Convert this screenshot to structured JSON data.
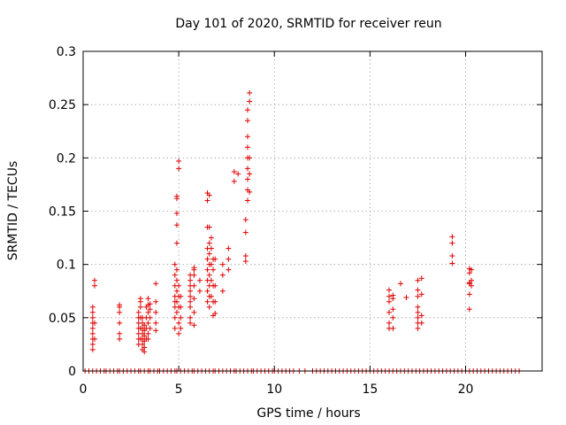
{
  "chart_data": {
    "type": "scatter",
    "title": "Day 101 of 2020, SRMTID for receiver reun",
    "xlabel": "GPS time / hours",
    "ylabel": "SRMTID / TECUs",
    "xlim": [
      0,
      24
    ],
    "ylim": [
      0,
      0.3
    ],
    "x_ticks": [
      0,
      5,
      10,
      15,
      20
    ],
    "y_ticks": [
      0,
      0.05,
      0.1,
      0.15,
      0.2,
      0.25,
      0.3
    ],
    "x_tick_labels": [
      "0",
      "5",
      "10",
      "15",
      "20"
    ],
    "y_tick_labels": [
      "0",
      "0.05",
      "0.1",
      "0.15",
      "0.2",
      "0.25",
      "0.3"
    ],
    "grid": true,
    "marker": "+",
    "marker_color": "#e00000",
    "series": [
      {
        "name": "SRMTID",
        "clusters": [
          {
            "x": 0.5,
            "values": [
              0.02,
              0.025,
              0.03,
              0.035,
              0.04,
              0.045,
              0.05,
              0.055,
              0.06
            ]
          },
          {
            "x": 0.6,
            "values": [
              0.03,
              0.045,
              0.08,
              0.085
            ]
          },
          {
            "x": 1.9,
            "values": [
              0.03,
              0.035,
              0.045,
              0.055,
              0.06,
              0.062
            ]
          },
          {
            "x": 2.9,
            "values": [
              0.025,
              0.03,
              0.035,
              0.04,
              0.045,
              0.05,
              0.055
            ]
          },
          {
            "x": 3.0,
            "values": [
              0.03,
              0.04,
              0.05,
              0.06,
              0.065,
              0.068
            ]
          },
          {
            "x": 3.1,
            "values": [
              0.02,
              0.025,
              0.03,
              0.035,
              0.04,
              0.045,
              0.05
            ]
          },
          {
            "x": 3.2,
            "values": [
              0.018,
              0.022,
              0.028,
              0.033,
              0.038,
              0.043
            ]
          },
          {
            "x": 3.3,
            "values": [
              0.03,
              0.04,
              0.05,
              0.06
            ]
          },
          {
            "x": 3.4,
            "values": [
              0.03,
              0.035,
              0.045,
              0.055,
              0.062,
              0.068
            ]
          },
          {
            "x": 3.5,
            "values": [
              0.04,
              0.05,
              0.058,
              0.063
            ]
          },
          {
            "x": 3.8,
            "values": [
              0.038,
              0.045,
              0.055,
              0.065,
              0.082
            ]
          },
          {
            "x": 4.8,
            "values": [
              0.04,
              0.05,
              0.06,
              0.065,
              0.07,
              0.08,
              0.09,
              0.1
            ]
          },
          {
            "x": 4.9,
            "values": [
              0.055,
              0.065,
              0.075,
              0.085,
              0.095,
              0.12,
              0.137,
              0.148,
              0.162,
              0.164
            ]
          },
          {
            "x": 5.0,
            "values": [
              0.035,
              0.045,
              0.06,
              0.07,
              0.08,
              0.19,
              0.197
            ]
          },
          {
            "x": 5.1,
            "values": [
              0.04,
              0.05,
              0.06,
              0.07
            ]
          },
          {
            "x": 5.6,
            "values": [
              0.045,
              0.05,
              0.06,
              0.065,
              0.07,
              0.075,
              0.08,
              0.085,
              0.09
            ]
          },
          {
            "x": 5.8,
            "values": [
              0.043,
              0.055,
              0.068,
              0.08,
              0.09,
              0.095,
              0.097
            ]
          },
          {
            "x": 6.1,
            "values": [
              0.075,
              0.085
            ]
          },
          {
            "x": 6.5,
            "values": [
              0.065,
              0.075,
              0.085,
              0.095,
              0.105,
              0.115,
              0.135,
              0.16,
              0.167
            ]
          },
          {
            "x": 6.6,
            "values": [
              0.06,
              0.07,
              0.08,
              0.09,
              0.1,
              0.11,
              0.12,
              0.135,
              0.165
            ]
          },
          {
            "x": 6.7,
            "values": [
              0.07,
              0.085,
              0.1,
              0.115,
              0.125
            ]
          },
          {
            "x": 6.8,
            "values": [
              0.052,
              0.065,
              0.08,
              0.095,
              0.105
            ]
          },
          {
            "x": 6.9,
            "values": [
              0.054,
              0.065,
              0.08,
              0.105
            ]
          },
          {
            "x": 7.3,
            "values": [
              0.075,
              0.09,
              0.1
            ]
          },
          {
            "x": 7.6,
            "values": [
              0.095,
              0.105,
              0.115
            ]
          },
          {
            "x": 7.9,
            "values": [
              0.178,
              0.187
            ]
          },
          {
            "x": 8.1,
            "values": [
              0.185
            ]
          },
          {
            "x": 8.5,
            "values": [
              0.103,
              0.108,
              0.13,
              0.142
            ]
          },
          {
            "x": 8.6,
            "values": [
              0.16,
              0.17,
              0.18,
              0.19,
              0.2,
              0.21,
              0.22,
              0.235,
              0.245
            ]
          },
          {
            "x": 8.7,
            "values": [
              0.168,
              0.185,
              0.2,
              0.253,
              0.261
            ]
          },
          {
            "x": 16.0,
            "values": [
              0.04,
              0.045,
              0.055,
              0.065,
              0.07,
              0.076
            ]
          },
          {
            "x": 16.2,
            "values": [
              0.04,
              0.05,
              0.058,
              0.068,
              0.071
            ]
          },
          {
            "x": 16.6,
            "values": [
              0.082
            ]
          },
          {
            "x": 16.9,
            "values": [
              0.069
            ]
          },
          {
            "x": 17.5,
            "values": [
              0.04,
              0.045,
              0.05,
              0.055,
              0.06,
              0.07,
              0.076,
              0.085
            ]
          },
          {
            "x": 17.7,
            "values": [
              0.045,
              0.052,
              0.072,
              0.087
            ]
          },
          {
            "x": 19.3,
            "values": [
              0.101,
              0.108,
              0.12,
              0.126
            ]
          },
          {
            "x": 20.2,
            "values": [
              0.058,
              0.072,
              0.082,
              0.083,
              0.092,
              0.096
            ]
          },
          {
            "x": 20.3,
            "values": [
              0.08,
              0.085,
              0.095
            ]
          }
        ],
        "zero_values_x": [
          0.1,
          0.3,
          0.5,
          0.7,
          0.9,
          1.1,
          1.2,
          1.4,
          1.6,
          1.8,
          1.9,
          2.1,
          2.3,
          2.5,
          2.7,
          2.9,
          3.0,
          3.2,
          3.4,
          3.5,
          3.7,
          3.9,
          4.0,
          4.2,
          4.4,
          4.6,
          4.8,
          4.9,
          5.1,
          5.3,
          5.5,
          5.7,
          5.8,
          6.0,
          6.2,
          6.4,
          6.6,
          6.8,
          6.9,
          7.1,
          7.3,
          7.5,
          7.7,
          7.9,
          8.0,
          8.2,
          8.4,
          8.6,
          8.8,
          8.9,
          9.1,
          9.3,
          9.5,
          9.7,
          9.9,
          10.0,
          10.2,
          10.4,
          10.6,
          10.8,
          11.0,
          11.3,
          11.6,
          12.0,
          12.2,
          12.4,
          12.6,
          12.8,
          13.0,
          13.2,
          13.4,
          13.6,
          13.8,
          14.0,
          14.2,
          14.4,
          14.6,
          14.8,
          15.0,
          15.2,
          15.4,
          15.6,
          15.8,
          16.0,
          16.2,
          16.4,
          16.6,
          16.8,
          17.0,
          17.2,
          17.4,
          17.6,
          17.8,
          18.0,
          18.2,
          18.4,
          18.6,
          18.8,
          19.0,
          19.2,
          19.4,
          19.6,
          19.8,
          20.0,
          20.2,
          20.4,
          20.6,
          20.8,
          21.0,
          21.2,
          21.4,
          21.6,
          21.8,
          22.0,
          22.2,
          22.4,
          22.6,
          22.8
        ]
      }
    ]
  }
}
